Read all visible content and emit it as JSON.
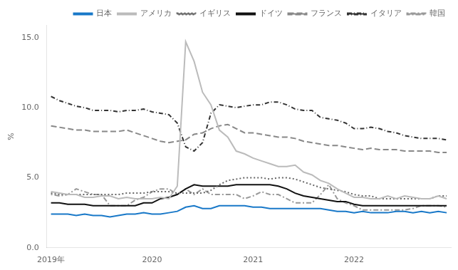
{
  "chart_data": {
    "type": "line",
    "y_label": "%",
    "categories": [
      "2019年",
      null,
      null,
      null,
      null,
      null,
      null,
      null,
      null,
      null,
      null,
      null,
      "2020",
      null,
      null,
      null,
      null,
      null,
      null,
      null,
      null,
      null,
      null,
      null,
      "2021",
      null,
      null,
      null,
      null,
      null,
      null,
      null,
      null,
      null,
      null,
      null,
      "2022",
      null,
      null,
      null,
      null,
      null,
      null,
      null,
      null,
      null,
      null,
      null
    ],
    "ylim": [
      0.0,
      15.9
    ],
    "yticks": [
      {
        "value": 0,
        "label": "0.0"
      },
      {
        "value": 5,
        "label": "5.0"
      },
      {
        "value": 10,
        "label": "10.0"
      },
      {
        "value": 15,
        "label": "15.0"
      }
    ],
    "grid": false,
    "legend": "upper right",
    "series": [
      {
        "name": "日本",
        "color": "#1878c8",
        "line_style": "solid",
        "values": [
          2.4,
          2.4,
          2.4,
          2.3,
          2.4,
          2.3,
          2.3,
          2.2,
          2.3,
          2.4,
          2.4,
          2.5,
          2.4,
          2.4,
          2.5,
          2.6,
          2.9,
          3.0,
          2.8,
          2.8,
          3.0,
          3.0,
          3.0,
          3.0,
          2.9,
          2.9,
          2.8,
          2.8,
          2.8,
          2.8,
          2.8,
          2.8,
          2.8,
          2.7,
          2.6,
          2.6,
          2.5,
          2.6,
          2.5,
          2.5,
          2.5,
          2.6,
          2.6,
          2.5,
          2.6,
          2.5,
          2.6,
          2.5
        ]
      },
      {
        "name": "アメリカ",
        "color": "#bbbbbb",
        "line_style": "solid",
        "values": [
          4.0,
          3.9,
          3.8,
          3.8,
          3.6,
          3.6,
          3.7,
          3.7,
          3.5,
          3.6,
          3.5,
          3.5,
          3.5,
          3.6,
          3.5,
          4.4,
          14.7,
          13.3,
          11.1,
          10.2,
          8.4,
          7.9,
          6.9,
          6.7,
          6.4,
          6.2,
          6.0,
          5.8,
          5.8,
          5.9,
          5.4,
          5.2,
          4.8,
          4.6,
          4.2,
          3.9,
          3.6,
          3.6,
          3.5,
          3.5,
          3.7,
          3.5,
          3.7,
          3.6,
          3.5,
          3.5,
          3.7,
          3.5
        ]
      },
      {
        "name": "イギリス",
        "color": "#666666",
        "line_style": "dotted",
        "values": [
          3.9,
          3.8,
          3.8,
          3.8,
          3.8,
          3.8,
          3.8,
          3.8,
          3.8,
          3.9,
          3.9,
          3.9,
          4.0,
          4.0,
          4.0,
          3.9,
          3.9,
          3.9,
          3.9,
          4.1,
          4.5,
          4.8,
          4.9,
          5.0,
          5.0,
          5.0,
          4.9,
          5.0,
          5.0,
          4.9,
          4.7,
          4.5,
          4.3,
          4.2,
          4.1,
          4.0,
          3.8,
          3.7,
          3.7,
          3.5,
          3.5,
          3.5,
          3.5,
          3.5,
          3.5,
          3.5,
          3.7,
          3.7
        ]
      },
      {
        "name": "ドイツ",
        "color": "#111111",
        "line_style": "solid",
        "values": [
          3.2,
          3.2,
          3.1,
          3.1,
          3.1,
          3.0,
          3.0,
          3.0,
          3.0,
          3.0,
          3.0,
          3.2,
          3.2,
          3.5,
          3.6,
          3.8,
          4.2,
          4.5,
          4.4,
          4.4,
          4.4,
          4.4,
          4.5,
          4.5,
          4.5,
          4.5,
          4.5,
          4.4,
          4.2,
          3.9,
          3.7,
          3.6,
          3.5,
          3.4,
          3.3,
          3.3,
          3.1,
          3.0,
          3.0,
          3.0,
          3.0,
          3.0,
          3.0,
          3.0,
          3.0,
          3.0,
          3.0,
          3.0
        ]
      },
      {
        "name": "フランス",
        "color": "#888888",
        "line_style": "dashed",
        "values": [
          8.7,
          8.6,
          8.5,
          8.4,
          8.4,
          8.3,
          8.3,
          8.3,
          8.3,
          8.4,
          8.2,
          8.0,
          7.8,
          7.6,
          7.5,
          7.6,
          7.7,
          8.1,
          8.2,
          8.5,
          8.7,
          8.8,
          8.5,
          8.2,
          8.2,
          8.1,
          8.0,
          7.9,
          7.9,
          7.8,
          7.6,
          7.5,
          7.4,
          7.3,
          7.3,
          7.2,
          7.1,
          7.0,
          7.1,
          7.0,
          7.0,
          7.0,
          6.9,
          6.9,
          6.9,
          6.9,
          6.8,
          6.8
        ]
      },
      {
        "name": "イタリア",
        "color": "#333333",
        "line_style": "dashdot",
        "values": [
          10.8,
          10.5,
          10.3,
          10.1,
          10.0,
          9.8,
          9.8,
          9.8,
          9.7,
          9.8,
          9.8,
          9.9,
          9.7,
          9.6,
          9.5,
          8.9,
          7.2,
          6.9,
          7.5,
          9.6,
          10.2,
          10.1,
          10.0,
          10.1,
          10.2,
          10.2,
          10.4,
          10.4,
          10.2,
          9.9,
          9.8,
          9.8,
          9.3,
          9.2,
          9.1,
          8.9,
          8.5,
          8.5,
          8.6,
          8.5,
          8.3,
          8.2,
          8.0,
          7.9,
          7.8,
          7.8,
          7.8,
          7.7
        ]
      },
      {
        "name": "韓国",
        "color": "#999999",
        "line_style": "dotdash",
        "values": [
          3.8,
          3.7,
          3.8,
          4.2,
          4.0,
          3.8,
          3.8,
          3.0,
          3.0,
          3.0,
          3.4,
          3.6,
          4.0,
          4.2,
          4.2,
          3.8,
          4.2,
          3.8,
          4.2,
          3.8,
          3.8,
          3.8,
          3.8,
          3.5,
          3.7,
          4.0,
          3.8,
          3.8,
          3.5,
          3.2,
          3.2,
          3.2,
          3.8,
          4.5,
          3.5,
          3.2,
          3.0,
          2.7,
          2.7,
          2.7,
          2.7,
          2.7,
          2.7,
          2.8,
          3.0,
          3.0,
          3.0,
          2.9
        ]
      }
    ]
  }
}
